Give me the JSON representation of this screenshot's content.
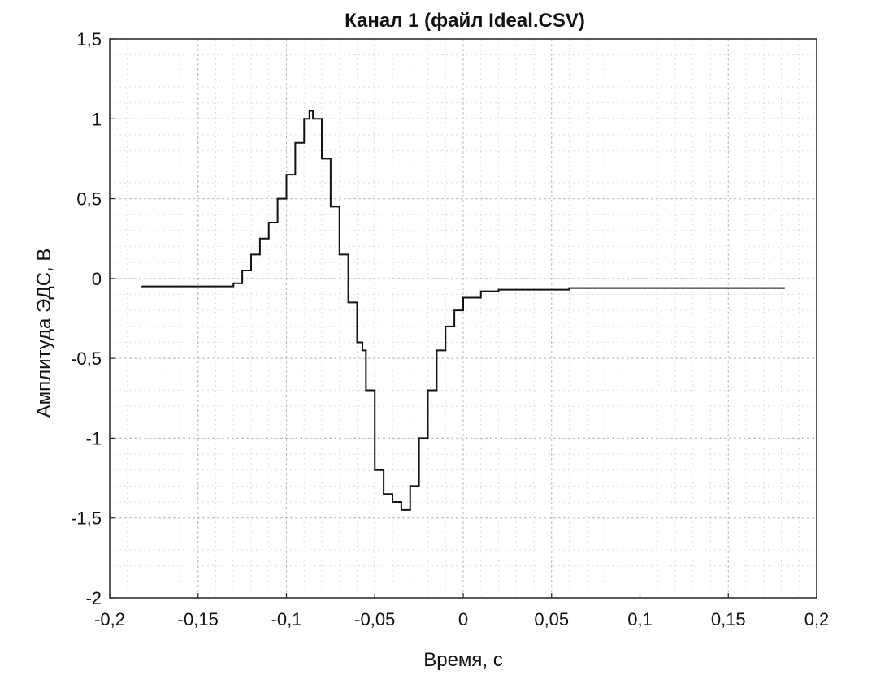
{
  "chart_data": {
    "type": "line",
    "title": "Канал 1  (файл Ideal.CSV)",
    "xlabel": "Время, с",
    "ylabel": "Амплитуда ЭДС, В",
    "xlim": [
      -0.2,
      0.2
    ],
    "ylim": [
      -2,
      1.5
    ],
    "x_ticks": [
      -0.2,
      -0.15,
      -0.1,
      -0.05,
      0,
      0.05,
      0.1,
      0.15,
      0.2
    ],
    "x_tick_labels": [
      "-0,2",
      "-0,15",
      "-0,1",
      "-0,05",
      "0",
      "0,05",
      "0,1",
      "0,15",
      "0,2"
    ],
    "y_ticks": [
      1.5,
      1,
      0.5,
      0,
      -0.5,
      -1,
      -1.5,
      -2
    ],
    "y_tick_labels": [
      "1,5",
      "1",
      "0,5",
      "0",
      "-0,5",
      "-1",
      "-1,5",
      "-2"
    ],
    "grid": true,
    "series": [
      {
        "color": "#111111",
        "x": [
          -0.182,
          -0.17,
          -0.16,
          -0.15,
          -0.14,
          -0.13,
          -0.125,
          -0.12,
          -0.115,
          -0.11,
          -0.105,
          -0.1,
          -0.095,
          -0.09,
          -0.087,
          -0.085,
          -0.08,
          -0.075,
          -0.07,
          -0.065,
          -0.06,
          -0.057,
          -0.055,
          -0.05,
          -0.045,
          -0.04,
          -0.035,
          -0.03,
          -0.025,
          -0.02,
          -0.015,
          -0.01,
          -0.005,
          0,
          0.01,
          0.02,
          0.04,
          0.06,
          0.08,
          0.1,
          0.12,
          0.14,
          0.16,
          0.182
        ],
        "y": [
          -0.05,
          -0.05,
          -0.05,
          -0.05,
          -0.05,
          -0.03,
          0.05,
          0.15,
          0.25,
          0.35,
          0.5,
          0.65,
          0.85,
          1.0,
          1.05,
          1.0,
          0.75,
          0.45,
          0.15,
          -0.15,
          -0.4,
          -0.45,
          -0.7,
          -1.2,
          -1.35,
          -1.4,
          -1.45,
          -1.3,
          -1.0,
          -0.7,
          -0.45,
          -0.3,
          -0.2,
          -0.12,
          -0.08,
          -0.07,
          -0.07,
          -0.06,
          -0.06,
          -0.06,
          -0.06,
          -0.06,
          -0.06,
          -0.06
        ]
      }
    ]
  }
}
